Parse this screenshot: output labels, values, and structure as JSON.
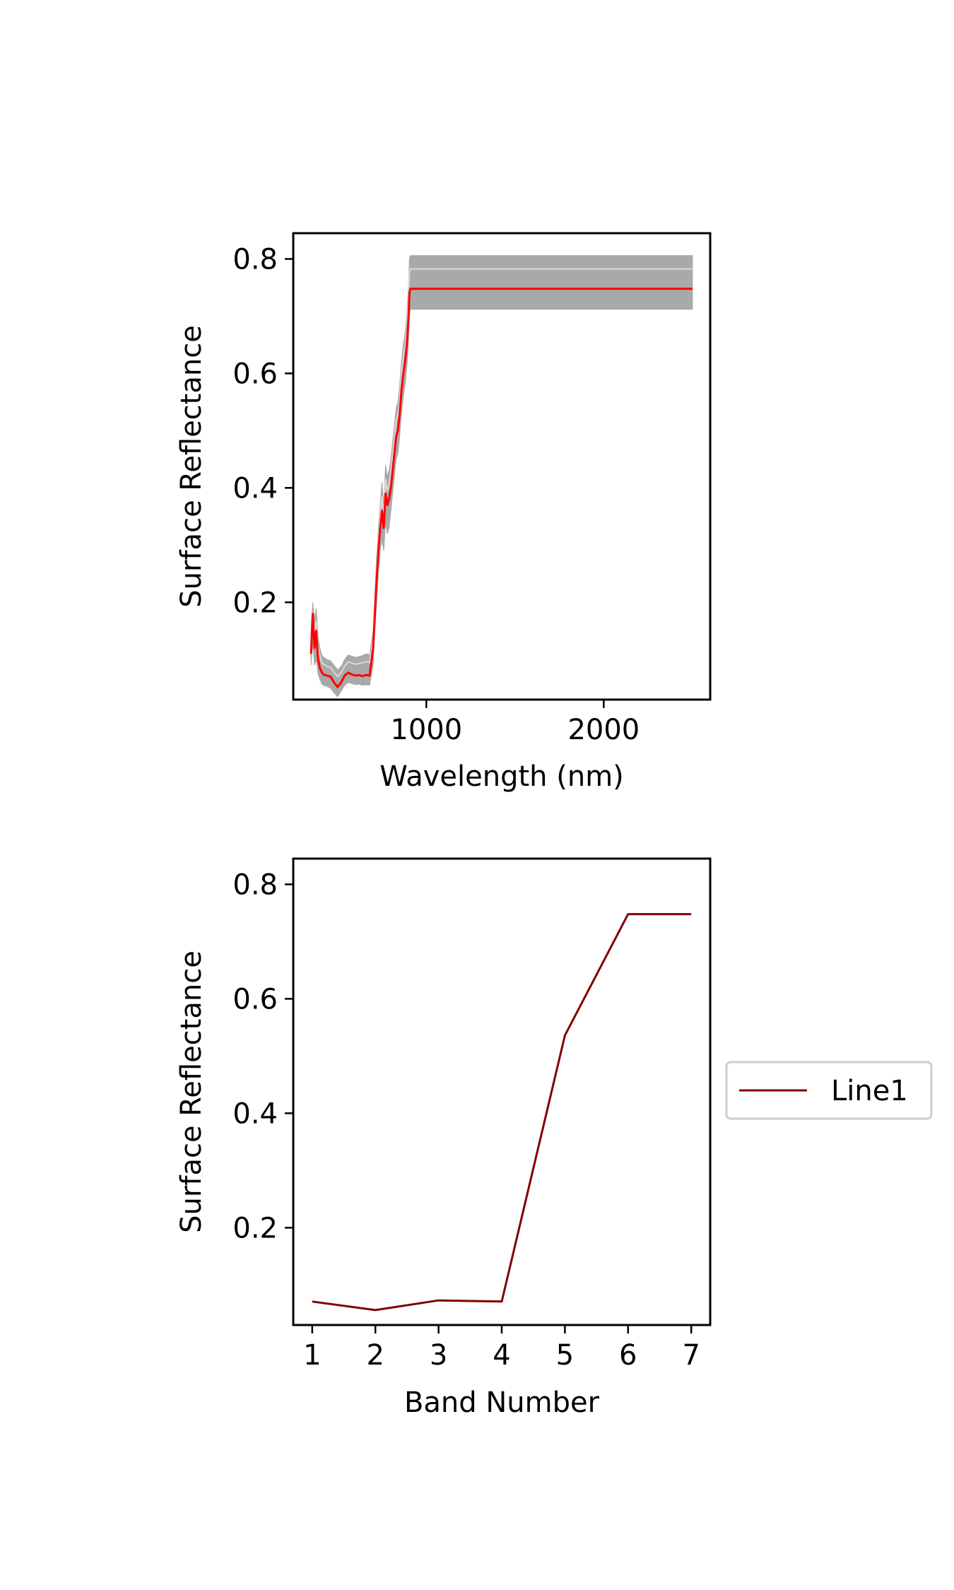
{
  "chart_data": [
    {
      "type": "line",
      "xlabel": "Wavelength (nm)",
      "ylabel": "Surface Reflectance",
      "xlim": [
        250,
        2600
      ],
      "ylim": [
        0.03,
        0.845
      ],
      "xticks": [
        1000,
        2000
      ],
      "yticks": [
        0.2,
        0.4,
        0.6,
        0.8
      ],
      "series": [
        {
          "role": "mean",
          "color": "#ff0000",
          "x": [
            350,
            360,
            370,
            380,
            390,
            400,
            410,
            420,
            440,
            460,
            480,
            500,
            520,
            540,
            560,
            580,
            600,
            620,
            640,
            660,
            680,
            700,
            710,
            720,
            730,
            740,
            750,
            760,
            770,
            780,
            790,
            800,
            810,
            820,
            830,
            840,
            850,
            860,
            870,
            880,
            890,
            900,
            905,
            910,
            920,
            1000,
            1200,
            1500,
            2000,
            2500
          ],
          "y": [
            0.11,
            0.18,
            0.12,
            0.15,
            0.1,
            0.085,
            0.078,
            0.074,
            0.072,
            0.07,
            0.06,
            0.052,
            0.06,
            0.072,
            0.077,
            0.074,
            0.072,
            0.073,
            0.071,
            0.073,
            0.072,
            0.12,
            0.18,
            0.24,
            0.29,
            0.33,
            0.36,
            0.33,
            0.39,
            0.37,
            0.38,
            0.4,
            0.43,
            0.46,
            0.49,
            0.5,
            0.53,
            0.57,
            0.6,
            0.62,
            0.65,
            0.7,
            0.74,
            0.748,
            0.748,
            0.748,
            0.748,
            0.748,
            0.748,
            0.748
          ]
        },
        {
          "role": "range",
          "color": "#a9a9a9",
          "x": [
            350,
            360,
            370,
            380,
            390,
            400,
            410,
            420,
            440,
            460,
            480,
            500,
            520,
            540,
            560,
            580,
            600,
            620,
            640,
            660,
            680,
            700,
            710,
            720,
            730,
            740,
            750,
            760,
            770,
            780,
            790,
            800,
            810,
            820,
            830,
            840,
            850,
            860,
            870,
            880,
            890,
            900,
            905,
            910,
            920,
            1000,
            1200,
            1500,
            2000,
            2500
          ],
          "low": [
            0.09,
            0.13,
            0.09,
            0.1,
            0.075,
            0.065,
            0.058,
            0.055,
            0.053,
            0.05,
            0.042,
            0.035,
            0.045,
            0.055,
            0.06,
            0.058,
            0.056,
            0.057,
            0.055,
            0.056,
            0.055,
            0.09,
            0.15,
            0.2,
            0.25,
            0.29,
            0.31,
            0.29,
            0.34,
            0.32,
            0.33,
            0.36,
            0.39,
            0.42,
            0.45,
            0.46,
            0.49,
            0.53,
            0.56,
            0.58,
            0.61,
            0.66,
            0.7,
            0.712,
            0.712,
            0.712,
            0.712,
            0.712,
            0.712,
            0.712
          ],
          "high": [
            0.15,
            0.2,
            0.17,
            0.19,
            0.14,
            0.12,
            0.108,
            0.104,
            0.1,
            0.098,
            0.09,
            0.082,
            0.088,
            0.1,
            0.108,
            0.106,
            0.104,
            0.105,
            0.107,
            0.11,
            0.108,
            0.15,
            0.22,
            0.28,
            0.33,
            0.37,
            0.41,
            0.37,
            0.44,
            0.42,
            0.43,
            0.45,
            0.48,
            0.51,
            0.54,
            0.55,
            0.58,
            0.62,
            0.65,
            0.67,
            0.7,
            0.76,
            0.8,
            0.806,
            0.806,
            0.806,
            0.806,
            0.806,
            0.806,
            0.806
          ]
        }
      ]
    },
    {
      "type": "line",
      "xlabel": "Band Number",
      "ylabel": "Surface Reflectance",
      "xlim": [
        0.7,
        7.3
      ],
      "ylim": [
        0.03,
        0.845
      ],
      "xticks": [
        1,
        2,
        3,
        4,
        5,
        6,
        7
      ],
      "yticks": [
        0.2,
        0.4,
        0.6,
        0.8
      ],
      "legend": {
        "position": "right"
      },
      "series": [
        {
          "name": "Line1",
          "color": "#800000",
          "x": [
            1,
            2,
            3,
            4,
            5,
            6,
            7
          ],
          "y": [
            0.071,
            0.056,
            0.073,
            0.071,
            0.536,
            0.748,
            0.748
          ]
        }
      ]
    }
  ]
}
